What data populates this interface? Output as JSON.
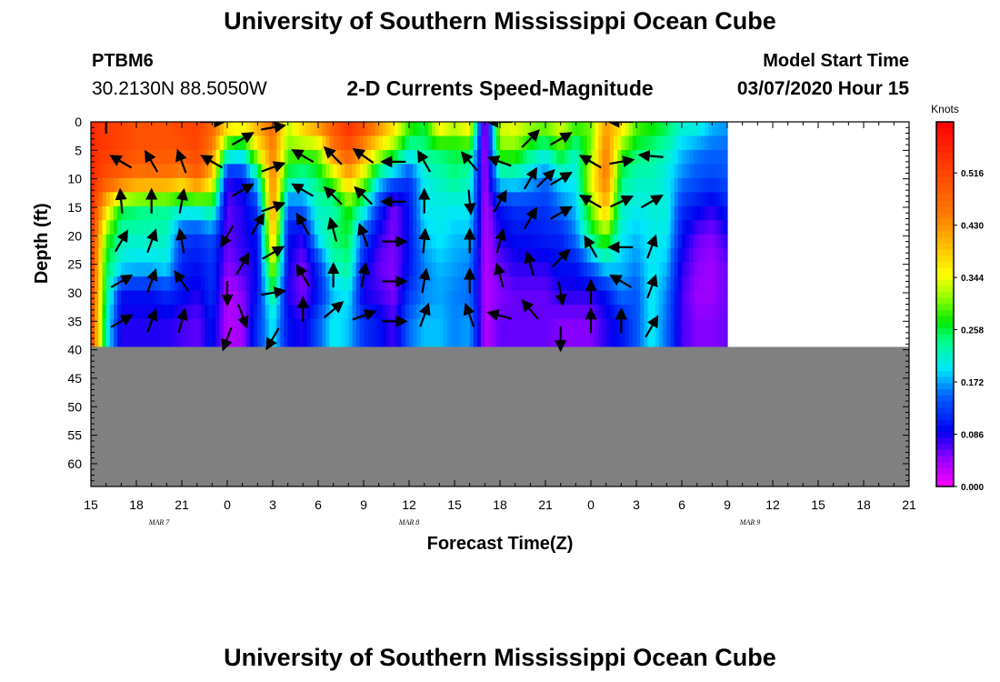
{
  "header": {
    "title": "University of Southern Mississippi Ocean Cube",
    "footer_title": "University of Southern Mississippi Ocean Cube",
    "station_name": "PTBM6",
    "station_coords": "30.2130N 88.5050W",
    "plot_title": "2-D Currents Speed-Magnitude",
    "start_label": "Model Start Time",
    "start_value": "03/07/2020 Hour 15"
  },
  "chart_data": {
    "type": "heatmap",
    "xlabel": "Forecast Time(Z)",
    "ylabel": "Depth (ft)",
    "x_ticks": [
      "15",
      "18",
      "21",
      "0",
      "3",
      "6",
      "9",
      "12",
      "15",
      "18",
      "21",
      "0",
      "3",
      "6",
      "9",
      "12",
      "15",
      "18",
      "21"
    ],
    "date_labels": [
      {
        "label": "MAR 7",
        "tick_index": 1.5
      },
      {
        "label": "MAR 8",
        "tick_index": 7
      },
      {
        "label": "MAR 9",
        "tick_index": 14.5
      }
    ],
    "y_ticks": [
      0,
      5,
      10,
      15,
      20,
      25,
      30,
      35,
      40,
      45,
      50,
      55,
      60
    ],
    "ylim": [
      0,
      64
    ],
    "water_bottom_ft": 39.5,
    "land_color": "#808080",
    "colorbar": {
      "unit": "Knots",
      "vmin": 0.0,
      "vmax": 0.6,
      "labels": [
        "0.516",
        "0.430",
        "0.344",
        "0.258",
        "0.172",
        "0.086",
        "0.000"
      ]
    },
    "speed_depths_ft": [
      0,
      5,
      10,
      15,
      20,
      25,
      30,
      35,
      39.5
    ],
    "speed_columns": [
      {
        "hour": 0,
        "speed": [
          0.55,
          0.55,
          0.55,
          0.55,
          0.54,
          0.54,
          0.53,
          0.53,
          0.53
        ]
      },
      {
        "hour": 1,
        "speed": [
          0.53,
          0.53,
          0.5,
          0.38,
          0.3,
          0.26,
          0.25,
          0.22,
          0.22
        ]
      },
      {
        "hour": 2,
        "speed": [
          0.52,
          0.52,
          0.48,
          0.26,
          0.22,
          0.2,
          0.1,
          0.08,
          0.08
        ]
      },
      {
        "hour": 3,
        "speed": [
          0.5,
          0.5,
          0.45,
          0.25,
          0.22,
          0.19,
          0.1,
          0.08,
          0.08
        ]
      },
      {
        "hour": 4,
        "speed": [
          0.5,
          0.5,
          0.45,
          0.24,
          0.22,
          0.19,
          0.1,
          0.08,
          0.08
        ]
      },
      {
        "hour": 5,
        "speed": [
          0.5,
          0.5,
          0.45,
          0.24,
          0.22,
          0.2,
          0.12,
          0.08,
          0.08
        ]
      },
      {
        "hour": 6,
        "speed": [
          0.52,
          0.5,
          0.42,
          0.22,
          0.13,
          0.11,
          0.1,
          0.07,
          0.07
        ]
      },
      {
        "hour": 7,
        "speed": [
          0.52,
          0.52,
          0.48,
          0.22,
          0.12,
          0.1,
          0.08,
          0.06,
          0.06
        ]
      },
      {
        "hour": 8,
        "speed": [
          0.48,
          0.45,
          0.38,
          0.25,
          0.14,
          0.12,
          0.12,
          0.1,
          0.1
        ]
      },
      {
        "hour": 9,
        "speed": [
          0.4,
          0.25,
          0.08,
          0.06,
          0.06,
          0.05,
          0.03,
          0.03,
          0.03
        ]
      },
      {
        "hour": 10,
        "speed": [
          0.38,
          0.22,
          0.1,
          0.08,
          0.08,
          0.07,
          0.05,
          0.04,
          0.04
        ]
      },
      {
        "hour": 11,
        "speed": [
          0.42,
          0.35,
          0.2,
          0.12,
          0.1,
          0.09,
          0.1,
          0.12,
          0.12
        ]
      },
      {
        "hour": 12,
        "speed": [
          0.47,
          0.45,
          0.45,
          0.44,
          0.4,
          0.34,
          0.25,
          0.2,
          0.2
        ]
      },
      {
        "hour": 13,
        "speed": [
          0.33,
          0.3,
          0.24,
          0.14,
          0.1,
          0.09,
          0.08,
          0.1,
          0.1
        ]
      },
      {
        "hour": 14,
        "speed": [
          0.4,
          0.3,
          0.22,
          0.15,
          0.08,
          0.05,
          0.05,
          0.08,
          0.08
        ]
      },
      {
        "hour": 15,
        "speed": [
          0.45,
          0.3,
          0.25,
          0.22,
          0.2,
          0.12,
          0.1,
          0.14,
          0.14
        ]
      },
      {
        "hour": 16,
        "speed": [
          0.5,
          0.45,
          0.3,
          0.22,
          0.25,
          0.22,
          0.18,
          0.2,
          0.2
        ]
      },
      {
        "hour": 17,
        "speed": [
          0.55,
          0.5,
          0.4,
          0.28,
          0.26,
          0.24,
          0.2,
          0.18,
          0.18
        ]
      },
      {
        "hour": 18,
        "speed": [
          0.52,
          0.42,
          0.32,
          0.22,
          0.14,
          0.1,
          0.08,
          0.12,
          0.12
        ]
      },
      {
        "hour": 19,
        "speed": [
          0.45,
          0.35,
          0.2,
          0.12,
          0.08,
          0.06,
          0.07,
          0.1,
          0.1
        ]
      },
      {
        "hour": 20,
        "speed": [
          0.38,
          0.3,
          0.15,
          0.05,
          0.05,
          0.05,
          0.05,
          0.07,
          0.07
        ]
      },
      {
        "hour": 21,
        "speed": [
          0.3,
          0.22,
          0.12,
          0.1,
          0.1,
          0.1,
          0.12,
          0.15,
          0.15
        ]
      },
      {
        "hour": 22,
        "speed": [
          0.26,
          0.24,
          0.2,
          0.2,
          0.18,
          0.16,
          0.16,
          0.18,
          0.18
        ]
      },
      {
        "hour": 23,
        "speed": [
          0.38,
          0.25,
          0.22,
          0.2,
          0.2,
          0.18,
          0.17,
          0.18,
          0.18
        ]
      },
      {
        "hour": 24,
        "speed": [
          0.34,
          0.26,
          0.24,
          0.2,
          0.18,
          0.17,
          0.16,
          0.16,
          0.16
        ]
      },
      {
        "hour": 25,
        "speed": [
          0.38,
          0.26,
          0.22,
          0.2,
          0.18,
          0.16,
          0.15,
          0.17,
          0.17
        ]
      },
      {
        "hour": 26,
        "speed": [
          0.02,
          0.02,
          0.03,
          0.03,
          0.03,
          0.03,
          0.03,
          0.03,
          0.03
        ]
      },
      {
        "hour": 27,
        "speed": [
          0.34,
          0.3,
          0.2,
          0.1,
          0.08,
          0.06,
          0.05,
          0.06,
          0.06
        ]
      },
      {
        "hour": 28,
        "speed": [
          0.35,
          0.3,
          0.2,
          0.12,
          0.1,
          0.08,
          0.06,
          0.06,
          0.06
        ]
      },
      {
        "hour": 29,
        "speed": [
          0.33,
          0.25,
          0.18,
          0.12,
          0.1,
          0.08,
          0.06,
          0.06,
          0.06
        ]
      },
      {
        "hour": 30,
        "speed": [
          0.32,
          0.22,
          0.15,
          0.12,
          0.11,
          0.08,
          0.06,
          0.06,
          0.06
        ]
      },
      {
        "hour": 31,
        "speed": [
          0.35,
          0.28,
          0.2,
          0.15,
          0.11,
          0.1,
          0.08,
          0.05,
          0.05
        ]
      },
      {
        "hour": 32,
        "speed": [
          0.3,
          0.22,
          0.2,
          0.18,
          0.16,
          0.1,
          0.08,
          0.05,
          0.05
        ]
      },
      {
        "hour": 33,
        "speed": [
          0.3,
          0.3,
          0.35,
          0.3,
          0.25,
          0.15,
          0.08,
          0.05,
          0.05
        ]
      },
      {
        "hour": 34,
        "speed": [
          0.42,
          0.45,
          0.46,
          0.4,
          0.3,
          0.2,
          0.1,
          0.08,
          0.08
        ]
      },
      {
        "hour": 35,
        "speed": [
          0.38,
          0.3,
          0.24,
          0.22,
          0.2,
          0.18,
          0.16,
          0.1,
          0.1
        ]
      },
      {
        "hour": 36,
        "speed": [
          0.3,
          0.25,
          0.22,
          0.2,
          0.18,
          0.16,
          0.14,
          0.14,
          0.14
        ]
      },
      {
        "hour": 37,
        "speed": [
          0.28,
          0.24,
          0.22,
          0.21,
          0.2,
          0.2,
          0.2,
          0.2,
          0.2
        ]
      },
      {
        "hour": 38,
        "speed": [
          0.26,
          0.22,
          0.2,
          0.21,
          0.2,
          0.18,
          0.16,
          0.15,
          0.15
        ]
      },
      {
        "hour": 39,
        "speed": [
          0.22,
          0.18,
          0.16,
          0.12,
          0.1,
          0.08,
          0.07,
          0.07,
          0.07
        ]
      },
      {
        "hour": 40,
        "speed": [
          0.22,
          0.16,
          0.14,
          0.1,
          0.06,
          0.05,
          0.04,
          0.05,
          0.05
        ]
      },
      {
        "hour": 41,
        "speed": [
          0.18,
          0.15,
          0.13,
          0.08,
          0.05,
          0.04,
          0.04,
          0.05,
          0.05
        ]
      },
      {
        "hour": 42,
        "speed": [
          0.17,
          0.15,
          0.14,
          0.11,
          0.08,
          0.06,
          0.06,
          0.06,
          0.06
        ]
      }
    ],
    "vectors": [
      {
        "hour": 1,
        "depth": 0,
        "angle": 0
      },
      {
        "hour": 2,
        "depth": 7,
        "angle": 300
      },
      {
        "hour": 2,
        "depth": 14,
        "angle": 355
      },
      {
        "hour": 2,
        "depth": 21,
        "angle": 30
      },
      {
        "hour": 2,
        "depth": 28,
        "angle": 60
      },
      {
        "hour": 2,
        "depth": 35,
        "angle": 60
      },
      {
        "hour": 4,
        "depth": 7,
        "angle": 330
      },
      {
        "hour": 4,
        "depth": 14,
        "angle": 0
      },
      {
        "hour": 4,
        "depth": 21,
        "angle": 20
      },
      {
        "hour": 4,
        "depth": 28,
        "angle": 20
      },
      {
        "hour": 4,
        "depth": 35,
        "angle": 20
      },
      {
        "hour": 6,
        "depth": 7,
        "angle": 340
      },
      {
        "hour": 6,
        "depth": 14,
        "angle": 10
      },
      {
        "hour": 6,
        "depth": 21,
        "angle": 350
      },
      {
        "hour": 6,
        "depth": 28,
        "angle": 325
      },
      {
        "hour": 6,
        "depth": 35,
        "angle": 15
      },
      {
        "hour": 8,
        "depth": 0,
        "angle": 90
      },
      {
        "hour": 8,
        "depth": 7,
        "angle": 300
      },
      {
        "hour": 9,
        "depth": 20,
        "angle": 210
      },
      {
        "hour": 9,
        "depth": 30,
        "angle": 180
      },
      {
        "hour": 9,
        "depth": 38,
        "angle": 200
      },
      {
        "hour": 10,
        "depth": 3,
        "angle": 60
      },
      {
        "hour": 10,
        "depth": 12,
        "angle": 60
      },
      {
        "hour": 10,
        "depth": 25,
        "angle": 30
      },
      {
        "hour": 10,
        "depth": 34,
        "angle": 160
      },
      {
        "hour": 11,
        "depth": 18,
        "angle": 30
      },
      {
        "hour": 12,
        "depth": 1,
        "angle": 80
      },
      {
        "hour": 12,
        "depth": 8,
        "angle": 70
      },
      {
        "hour": 12,
        "depth": 15,
        "angle": 70
      },
      {
        "hour": 12,
        "depth": 23,
        "angle": 60
      },
      {
        "hour": 12,
        "depth": 30,
        "angle": 80
      },
      {
        "hour": 12,
        "depth": 38,
        "angle": 210
      },
      {
        "hour": 14,
        "depth": 6,
        "angle": 300
      },
      {
        "hour": 14,
        "depth": 12,
        "angle": 300
      },
      {
        "hour": 14,
        "depth": 18,
        "angle": 330
      },
      {
        "hour": 14,
        "depth": 27,
        "angle": 330
      },
      {
        "hour": 14,
        "depth": 33,
        "angle": 0
      },
      {
        "hour": 16,
        "depth": 6,
        "angle": 315
      },
      {
        "hour": 16,
        "depth": 13,
        "angle": 315
      },
      {
        "hour": 16,
        "depth": 19,
        "angle": 345
      },
      {
        "hour": 16,
        "depth": 27,
        "angle": 0
      },
      {
        "hour": 16,
        "depth": 33,
        "angle": 50
      },
      {
        "hour": 18,
        "depth": 6,
        "angle": 305
      },
      {
        "hour": 18,
        "depth": 13,
        "angle": 315
      },
      {
        "hour": 18,
        "depth": 20,
        "angle": 340
      },
      {
        "hour": 18,
        "depth": 27,
        "angle": 10
      },
      {
        "hour": 18,
        "depth": 34,
        "angle": 70
      },
      {
        "hour": 20,
        "depth": 7,
        "angle": 270
      },
      {
        "hour": 20,
        "depth": 14,
        "angle": 270
      },
      {
        "hour": 20,
        "depth": 21,
        "angle": 90
      },
      {
        "hour": 20,
        "depth": 28,
        "angle": 90
      },
      {
        "hour": 20,
        "depth": 35,
        "angle": 90
      },
      {
        "hour": 22,
        "depth": 7,
        "angle": 330
      },
      {
        "hour": 22,
        "depth": 14,
        "angle": 0
      },
      {
        "hour": 22,
        "depth": 21,
        "angle": 5
      },
      {
        "hour": 22,
        "depth": 28,
        "angle": 10
      },
      {
        "hour": 22,
        "depth": 34,
        "angle": 20
      },
      {
        "hour": 25,
        "depth": 7,
        "angle": 320
      },
      {
        "hour": 25,
        "depth": 14,
        "angle": 175
      },
      {
        "hour": 25,
        "depth": 21,
        "angle": 0
      },
      {
        "hour": 25,
        "depth": 28,
        "angle": 0
      },
      {
        "hour": 25,
        "depth": 34,
        "angle": 340
      },
      {
        "hour": 27,
        "depth": 0,
        "angle": 270
      },
      {
        "hour": 27,
        "depth": 7,
        "angle": 290
      },
      {
        "hour": 27,
        "depth": 14,
        "angle": 30
      },
      {
        "hour": 27,
        "depth": 21,
        "angle": 15
      },
      {
        "hour": 27,
        "depth": 27,
        "angle": 345
      },
      {
        "hour": 27,
        "depth": 34,
        "angle": 285
      },
      {
        "hour": 29,
        "depth": 3,
        "angle": 45
      },
      {
        "hour": 29,
        "depth": 10,
        "angle": 30
      },
      {
        "hour": 29,
        "depth": 17,
        "angle": 30
      },
      {
        "hour": 29,
        "depth": 25,
        "angle": 345
      },
      {
        "hour": 29,
        "depth": 33,
        "angle": 320
      },
      {
        "hour": 30,
        "depth": 10,
        "angle": 45
      },
      {
        "hour": 31,
        "depth": 3,
        "angle": 60
      },
      {
        "hour": 31,
        "depth": 10,
        "angle": 60
      },
      {
        "hour": 31,
        "depth": 16,
        "angle": 60
      },
      {
        "hour": 31,
        "depth": 24,
        "angle": 45
      },
      {
        "hour": 31,
        "depth": 30,
        "angle": 170
      },
      {
        "hour": 31,
        "depth": 38,
        "angle": 180
      },
      {
        "hour": 33,
        "depth": 7,
        "angle": 300
      },
      {
        "hour": 33,
        "depth": 14,
        "angle": 300
      },
      {
        "hour": 33,
        "depth": 22,
        "angle": 330
      },
      {
        "hour": 33,
        "depth": 30,
        "angle": 0
      },
      {
        "hour": 33,
        "depth": 35,
        "angle": 0
      },
      {
        "hour": 35,
        "depth": 0,
        "angle": 270
      },
      {
        "hour": 35,
        "depth": 7,
        "angle": 80
      },
      {
        "hour": 35,
        "depth": 14,
        "angle": 65
      },
      {
        "hour": 35,
        "depth": 22,
        "angle": 270
      },
      {
        "hour": 35,
        "depth": 28,
        "angle": 300
      },
      {
        "hour": 35,
        "depth": 35,
        "angle": 0
      },
      {
        "hour": 37,
        "depth": 6,
        "angle": 275
      },
      {
        "hour": 37,
        "depth": 14,
        "angle": 60
      },
      {
        "hour": 37,
        "depth": 22,
        "angle": 20
      },
      {
        "hour": 37,
        "depth": 29,
        "angle": 20
      },
      {
        "hour": 37,
        "depth": 36,
        "angle": 30
      }
    ]
  }
}
